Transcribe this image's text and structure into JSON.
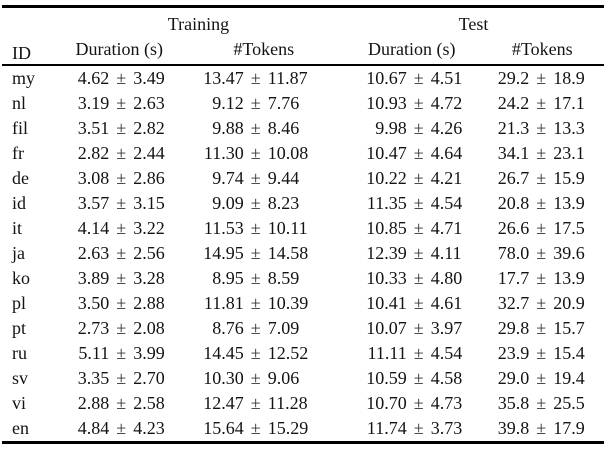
{
  "table": {
    "plus_minus": "±",
    "header": {
      "id_label": "ID",
      "groups": [
        {
          "label": "Training",
          "columns": [
            "Duration (s)",
            "#Tokens"
          ]
        },
        {
          "label": "Test",
          "columns": [
            "Duration (s)",
            "#Tokens"
          ]
        }
      ]
    },
    "rows": [
      {
        "id": "my",
        "cells": [
          [
            "4.62",
            "3.49"
          ],
          [
            "13.47",
            "11.87"
          ],
          [
            "10.67",
            "4.51"
          ],
          [
            "29.2",
            "18.9"
          ]
        ]
      },
      {
        "id": "nl",
        "cells": [
          [
            "3.19",
            "2.63"
          ],
          [
            "9.12",
            "7.76"
          ],
          [
            "10.93",
            "4.72"
          ],
          [
            "24.2",
            "17.1"
          ]
        ]
      },
      {
        "id": "fil",
        "cells": [
          [
            "3.51",
            "2.82"
          ],
          [
            "9.88",
            "8.46"
          ],
          [
            "9.98",
            "4.26"
          ],
          [
            "21.3",
            "13.3"
          ]
        ]
      },
      {
        "id": "fr",
        "cells": [
          [
            "2.82",
            "2.44"
          ],
          [
            "11.30",
            "10.08"
          ],
          [
            "10.47",
            "4.64"
          ],
          [
            "34.1",
            "23.1"
          ]
        ]
      },
      {
        "id": "de",
        "cells": [
          [
            "3.08",
            "2.86"
          ],
          [
            "9.74",
            "9.44"
          ],
          [
            "10.22",
            "4.21"
          ],
          [
            "26.7",
            "15.9"
          ]
        ]
      },
      {
        "id": "id",
        "cells": [
          [
            "3.57",
            "3.15"
          ],
          [
            "9.09",
            "8.23"
          ],
          [
            "11.35",
            "4.54"
          ],
          [
            "20.8",
            "13.9"
          ]
        ]
      },
      {
        "id": "it",
        "cells": [
          [
            "4.14",
            "3.22"
          ],
          [
            "11.53",
            "10.11"
          ],
          [
            "10.85",
            "4.71"
          ],
          [
            "26.6",
            "17.5"
          ]
        ]
      },
      {
        "id": "ja",
        "cells": [
          [
            "2.63",
            "2.56"
          ],
          [
            "14.95",
            "14.58"
          ],
          [
            "12.39",
            "4.11"
          ],
          [
            "78.0",
            "39.6"
          ]
        ]
      },
      {
        "id": "ko",
        "cells": [
          [
            "3.89",
            "3.28"
          ],
          [
            "8.95",
            "8.59"
          ],
          [
            "10.33",
            "4.80"
          ],
          [
            "17.7",
            "13.9"
          ]
        ]
      },
      {
        "id": "pl",
        "cells": [
          [
            "3.50",
            "2.88"
          ],
          [
            "11.81",
            "10.39"
          ],
          [
            "10.41",
            "4.61"
          ],
          [
            "32.7",
            "20.9"
          ]
        ]
      },
      {
        "id": "pt",
        "cells": [
          [
            "2.73",
            "2.08"
          ],
          [
            "8.76",
            "7.09"
          ],
          [
            "10.07",
            "3.97"
          ],
          [
            "29.8",
            "15.7"
          ]
        ]
      },
      {
        "id": "ru",
        "cells": [
          [
            "5.11",
            "3.99"
          ],
          [
            "14.45",
            "12.52"
          ],
          [
            "11.11",
            "4.54"
          ],
          [
            "23.9",
            "15.4"
          ]
        ]
      },
      {
        "id": "sv",
        "cells": [
          [
            "3.35",
            "2.70"
          ],
          [
            "10.30",
            "9.06"
          ],
          [
            "10.59",
            "4.58"
          ],
          [
            "29.0",
            "19.4"
          ]
        ]
      },
      {
        "id": "vi",
        "cells": [
          [
            "2.88",
            "2.58"
          ],
          [
            "12.47",
            "11.28"
          ],
          [
            "10.70",
            "4.73"
          ],
          [
            "35.8",
            "25.5"
          ]
        ]
      },
      {
        "id": "en",
        "cells": [
          [
            "4.84",
            "4.23"
          ],
          [
            "15.64",
            "15.29"
          ],
          [
            "11.74",
            "3.73"
          ],
          [
            "39.8",
            "17.9"
          ]
        ]
      }
    ]
  }
}
